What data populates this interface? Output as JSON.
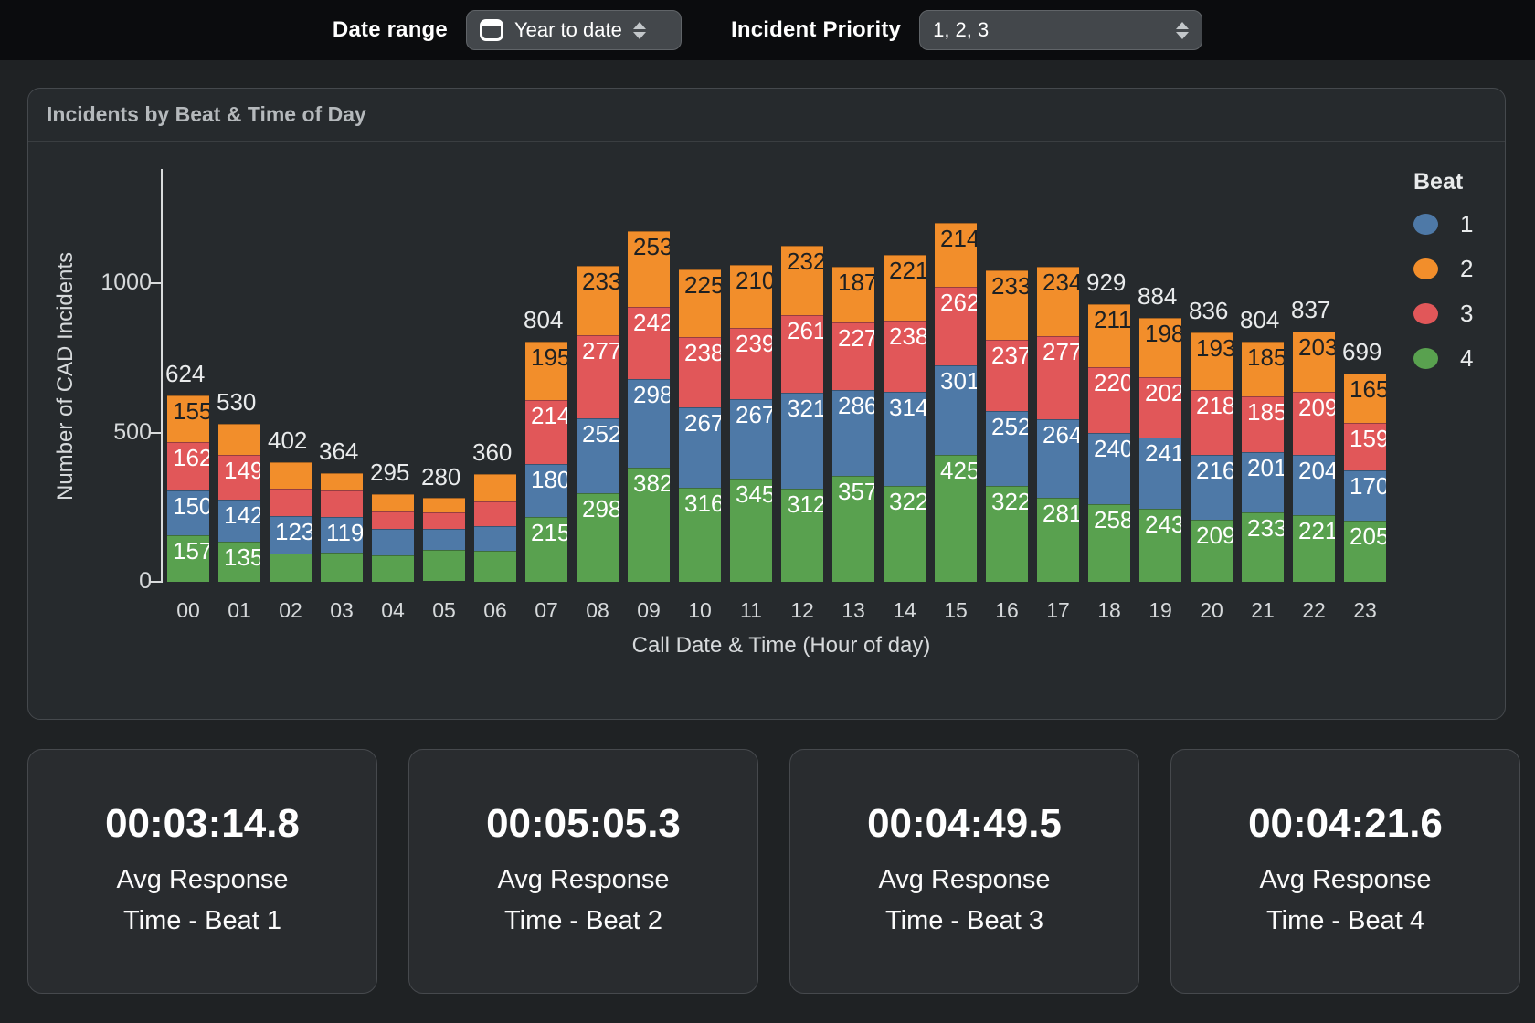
{
  "filters": {
    "date_range_label": "Date range",
    "date_range_value": "Year to date",
    "incident_priority_label": "Incident Priority",
    "incident_priority_value": "1, 2, 3"
  },
  "chart_data": {
    "type": "bar",
    "stacked": true,
    "title": "Incidents by Beat & Time of Day",
    "xlabel": "Call Date & Time (Hour of day)",
    "ylabel": "Number of CAD Incidents",
    "yticks": [
      0,
      500,
      1000
    ],
    "ylim": [
      0,
      1380
    ],
    "grid": false,
    "categories": [
      "00",
      "01",
      "02",
      "03",
      "04",
      "05",
      "06",
      "07",
      "08",
      "09",
      "10",
      "11",
      "12",
      "13",
      "14",
      "15",
      "16",
      "17",
      "18",
      "19",
      "20",
      "21",
      "22",
      "23"
    ],
    "stack_order_top_to_bottom": [
      "2",
      "3",
      "1",
      "4"
    ],
    "series": [
      {
        "name": "1",
        "color": "#4e79a7",
        "values": [
          150,
          142,
          123,
          119,
          88,
          70,
          84,
          180,
          252,
          298,
          267,
          267,
          321,
          286,
          314,
          301,
          252,
          264,
          240,
          241,
          216,
          201,
          204,
          170
        ]
      },
      {
        "name": "2",
        "color": "#f28e2b",
        "values": [
          155,
          104,
          88,
          59,
          59,
          48,
          93,
          195,
          233,
          253,
          225,
          210,
          232,
          187,
          221,
          214,
          233,
          234,
          211,
          198,
          193,
          185,
          203,
          165
        ]
      },
      {
        "name": "3",
        "color": "#e15759",
        "values": [
          162,
          149,
          94,
          87,
          57,
          57,
          81,
          214,
          277,
          242,
          238,
          239,
          261,
          227,
          238,
          262,
          237,
          277,
          220,
          202,
          218,
          185,
          209,
          159
        ]
      },
      {
        "name": "4",
        "color": "#59a14f",
        "values": [
          157,
          135,
          97,
          99,
          91,
          105,
          102,
          215,
          298,
          382,
          316,
          345,
          312,
          357,
          322,
          425,
          322,
          281,
          258,
          243,
          209,
          233,
          221,
          205
        ]
      }
    ],
    "totals": [
      624,
      530,
      402,
      364,
      295,
      280,
      360,
      804,
      1060,
      1175,
      1046,
      1061,
      1126,
      1057,
      1095,
      1202,
      1044,
      1056,
      929,
      884,
      836,
      804,
      837,
      699
    ],
    "visible_total_labels": [
      624,
      530,
      402,
      364,
      295,
      280,
      360,
      804,
      929,
      884,
      836,
      804,
      837,
      699
    ],
    "segment_label_min_value": 115,
    "total_label_max_value": 999,
    "legend": {
      "title": "Beat",
      "position": "right",
      "entries": [
        {
          "label": "1",
          "color": "#4e79a7"
        },
        {
          "label": "2",
          "color": "#f28e2b"
        },
        {
          "label": "3",
          "color": "#e15759"
        },
        {
          "label": "4",
          "color": "#59a14f"
        }
      ]
    }
  },
  "cards": [
    {
      "value": "00:03:14.8",
      "line1": "Avg Response",
      "line2": "Time - Beat 1"
    },
    {
      "value": "00:05:05.3",
      "line1": "Avg Response",
      "line2": "Time - Beat 2"
    },
    {
      "value": "00:04:49.5",
      "line1": "Avg Response",
      "line2": "Time - Beat 3"
    },
    {
      "value": "00:04:21.6",
      "line1": "Avg Response",
      "line2": "Time - Beat 4"
    }
  ]
}
